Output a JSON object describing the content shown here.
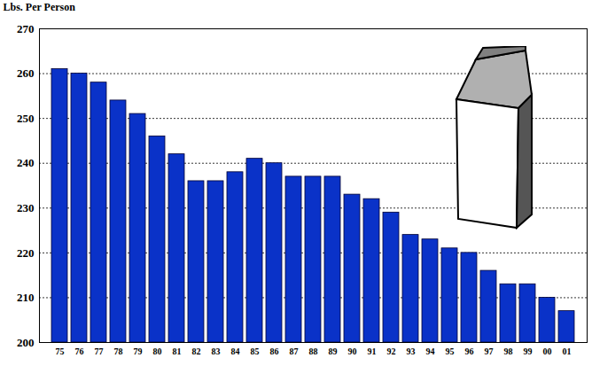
{
  "chart_data": {
    "type": "bar",
    "y_label": "Lbs. Per Person",
    "categories": [
      "75",
      "76",
      "77",
      "78",
      "79",
      "80",
      "81",
      "82",
      "83",
      "84",
      "85",
      "86",
      "87",
      "88",
      "89",
      "90",
      "91",
      "92",
      "93",
      "94",
      "95",
      "96",
      "97",
      "98",
      "99",
      "00",
      "01"
    ],
    "values": [
      261,
      260,
      258,
      254,
      251,
      246,
      242,
      236,
      236,
      238,
      241,
      240,
      237,
      237,
      237,
      233,
      232,
      229,
      224,
      223,
      221,
      220,
      216,
      213,
      213,
      210,
      207
    ],
    "color": "#0a32c8",
    "ylim": [
      200,
      270
    ],
    "yticks": [
      200,
      210,
      220,
      230,
      240,
      250,
      260,
      270
    ],
    "grid": true
  }
}
